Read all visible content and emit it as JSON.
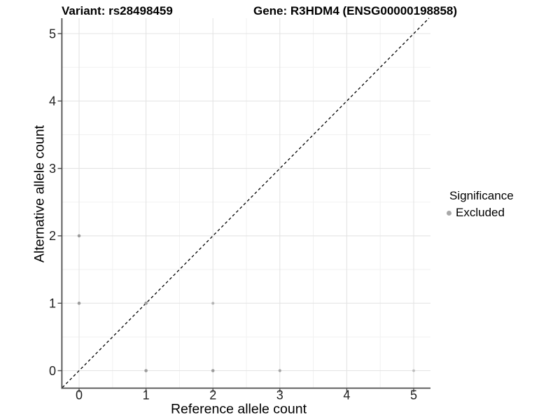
{
  "chart_data": {
    "type": "scatter",
    "title_left": "Variant: rs28498459",
    "title_right": "Gene: R3HDM4 (ENSG00000198858)",
    "xlabel": "Reference allele count",
    "ylabel": "Alternative allele count",
    "xlim": [
      -0.25,
      5.25
    ],
    "ylim": [
      -0.25,
      5.25
    ],
    "x_ticks": [
      0,
      1,
      2,
      3,
      4,
      5
    ],
    "y_ticks": [
      0,
      1,
      2,
      3,
      4,
      5
    ],
    "grid": {
      "major": true,
      "minor": true,
      "major_color": "#e4e4e4",
      "minor_color": "#f1f1f1"
    },
    "background": "#ffffff",
    "axis": {
      "line_color": "#4d4d4d",
      "tick_color": "#4d4d4d",
      "tick_label_color": "#1f1f1f"
    },
    "identity_line": {
      "slope": 1,
      "intercept": 0,
      "style": "dashed",
      "color": "#000000"
    },
    "point_radius": 2.3,
    "series": [
      {
        "name": "Excluded",
        "color": "#9c9c9c",
        "points": [
          {
            "x": 0,
            "y": 1
          },
          {
            "x": 0,
            "y": 2
          },
          {
            "x": 1,
            "y": 0
          },
          {
            "x": 1,
            "y": 1
          },
          {
            "x": 2,
            "y": 0
          },
          {
            "x": 2,
            "y": 1,
            "color": "#b4b4b4",
            "r": 2.0
          },
          {
            "x": 3,
            "y": 0,
            "color": "#a6a6a6",
            "r": 2.1
          },
          {
            "x": 5,
            "y": 0,
            "color": "#bdbdbd",
            "r": 1.9
          }
        ]
      }
    ],
    "legend": {
      "position": "right",
      "title": "Significance",
      "items": [
        {
          "label": "Excluded",
          "swatch_color": "#a8a8a8"
        }
      ]
    }
  }
}
